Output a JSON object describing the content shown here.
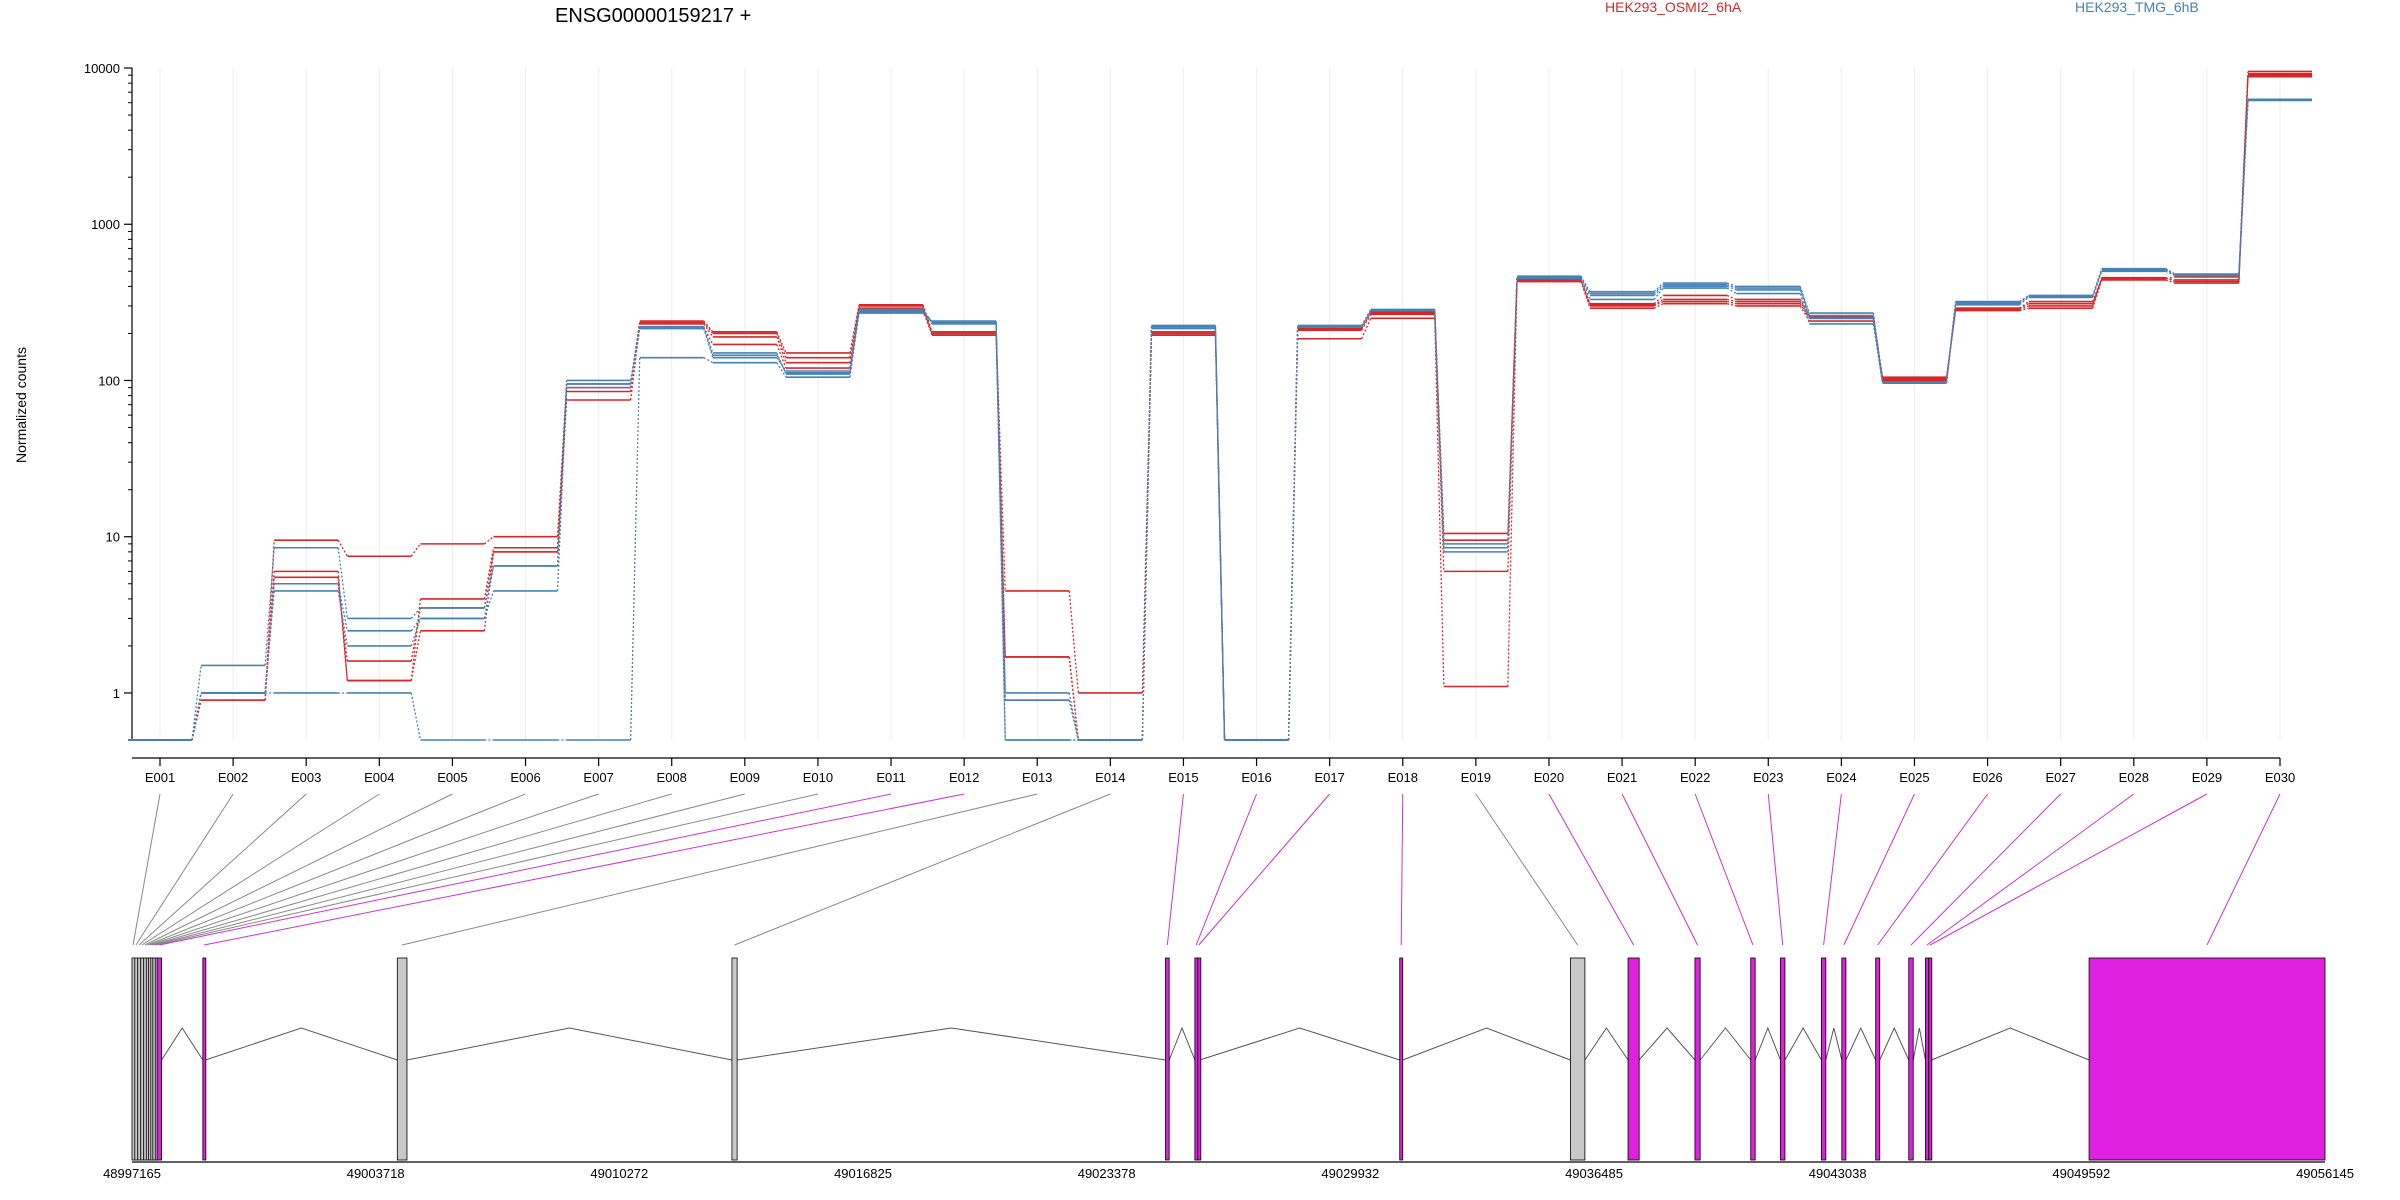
{
  "colors": {
    "group1": "#d62728",
    "group2": "#4682b4",
    "constitutive_exon": "#c8c8c8",
    "tested_exon": "#e020e0",
    "connector_gray": "#888888",
    "connector_magenta": "#cc33cc"
  },
  "chart_data": {
    "type": "line",
    "title": "ENSG00000159217 +",
    "ylabel": "Normalized counts",
    "yscale": "log",
    "ylim": [
      0.5,
      10000
    ],
    "yticks": [
      "1",
      "10",
      "100",
      "1000",
      "10000"
    ],
    "grid": true,
    "legend": [
      {
        "name": "HEK293_OSMI2_6hA",
        "color": "#d62728"
      },
      {
        "name": "HEK293_TMG_6hB",
        "color": "#4682b4"
      }
    ],
    "categories": [
      "E001",
      "E002",
      "E003",
      "E004",
      "E005",
      "E006",
      "E007",
      "E008",
      "E009",
      "E010",
      "E011",
      "E012",
      "E013",
      "E014",
      "E015",
      "E016",
      "E017",
      "E018",
      "E019",
      "E020",
      "E021",
      "E022",
      "E023",
      "E024",
      "E025",
      "E026",
      "E027",
      "E028",
      "E029",
      "E030"
    ],
    "series": [
      {
        "group": "HEK293_OSMI2_6hA",
        "values": [
          0.5,
          0.9,
          9.5,
          7.5,
          9.0,
          10.0,
          95,
          240,
          205,
          150,
          305,
          205,
          4.5,
          1.0,
          205,
          0.5,
          215,
          270,
          10.5,
          430,
          310,
          350,
          330,
          260,
          105,
          290,
          320,
          450,
          460,
          9500
        ]
      },
      {
        "group": "HEK293_OSMI2_6hA",
        "values": [
          0.5,
          1.0,
          6.0,
          1.2,
          4.0,
          8.5,
          85,
          235,
          200,
          140,
          290,
          200,
          1.7,
          0.5,
          200,
          0.5,
          215,
          275,
          6.0,
          440,
          300,
          320,
          310,
          250,
          100,
          285,
          300,
          455,
          430,
          9200
        ]
      },
      {
        "group": "HEK293_OSMI2_6hA",
        "values": [
          0.5,
          0.9,
          5.5,
          1.2,
          2.5,
          8.0,
          75,
          220,
          170,
          120,
          280,
          195,
          0.9,
          0.5,
          195,
          0.5,
          185,
          250,
          1.1,
          430,
          290,
          310,
          300,
          240,
          102,
          280,
          290,
          440,
          420,
          8800
        ]
      },
      {
        "group": "HEK293_OSMI2_6hA",
        "values": [
          0.5,
          1.0,
          5.0,
          1.6,
          3.5,
          8.0,
          90,
          230,
          190,
          130,
          300,
          195,
          1.7,
          0.5,
          195,
          0.5,
          210,
          265,
          9.5,
          440,
          305,
          330,
          320,
          255,
          103,
          290,
          310,
          450,
          440,
          9000
        ]
      },
      {
        "group": "HEK293_TMG_6hB",
        "values": [
          0.5,
          1.5,
          8.5,
          3.0,
          3.5,
          6.5,
          100,
          220,
          150,
          110,
          275,
          240,
          1.0,
          0.5,
          225,
          0.5,
          225,
          285,
          8.5,
          465,
          370,
          420,
          400,
          270,
          97,
          320,
          350,
          520,
          480,
          6300
        ]
      },
      {
        "group": "HEK293_TMG_6hB",
        "values": [
          0.5,
          1.0,
          1.0,
          1.0,
          0.5,
          0.5,
          0.5,
          140,
          130,
          105,
          270,
          230,
          0.5,
          0.5,
          220,
          0.5,
          220,
          280,
          9.0,
          450,
          330,
          390,
          360,
          230,
          96,
          305,
          340,
          500,
          470,
          6200
        ]
      },
      {
        "group": "HEK293_TMG_6hB",
        "values": [
          0.5,
          1.0,
          4.5,
          2.0,
          3.0,
          4.5,
          90,
          215,
          140,
          115,
          280,
          235,
          0.9,
          0.5,
          215,
          0.5,
          220,
          280,
          8.5,
          455,
          350,
          400,
          380,
          250,
          98,
          310,
          345,
          510,
          475,
          6250
        ]
      },
      {
        "group": "HEK293_TMG_6hB",
        "values": [
          0.5,
          1.0,
          5.0,
          2.5,
          3.0,
          6.5,
          95,
          220,
          145,
          112,
          285,
          235,
          0.5,
          0.5,
          220,
          0.5,
          222,
          282,
          8.0,
          460,
          360,
          410,
          390,
          260,
          97,
          315,
          348,
          515,
          478,
          6280
        ]
      }
    ],
    "gene_model": {
      "coordinate_ticks": [
        "48997165",
        "49003718",
        "49010272",
        "49016825",
        "49023378",
        "49029932",
        "49036485",
        "49043038",
        "49049592",
        "49056145"
      ],
      "coordinate_range": [
        48997165,
        49056145
      ],
      "exons": [
        {
          "id": "E001",
          "start": 48997165,
          "end": 48997220,
          "tested": false
        },
        {
          "id": "E002",
          "start": 48997240,
          "end": 48997300,
          "tested": false
        },
        {
          "id": "E003",
          "start": 48997320,
          "end": 48997390,
          "tested": false
        },
        {
          "id": "E004",
          "start": 48997400,
          "end": 48997460,
          "tested": false
        },
        {
          "id": "E005",
          "start": 48997480,
          "end": 48997540,
          "tested": false
        },
        {
          "id": "E006",
          "start": 48997550,
          "end": 48997600,
          "tested": false
        },
        {
          "id": "E007",
          "start": 48997610,
          "end": 48997660,
          "tested": false
        },
        {
          "id": "E008",
          "start": 48997670,
          "end": 48997720,
          "tested": false
        },
        {
          "id": "E009",
          "start": 48997725,
          "end": 48997780,
          "tested": false
        },
        {
          "id": "E010",
          "start": 48997790,
          "end": 48997830,
          "tested": false
        },
        {
          "id": "E011",
          "start": 48997840,
          "end": 48997960,
          "tested": true
        },
        {
          "id": "E012",
          "start": 48999070,
          "end": 48999140,
          "tested": true
        },
        {
          "id": "E013",
          "start": 49004300,
          "end": 49004560,
          "tested": false
        },
        {
          "id": "E014",
          "start": 49013300,
          "end": 49013440,
          "tested": false
        },
        {
          "id": "E015",
          "start": 49024960,
          "end": 49025060,
          "tested": true
        },
        {
          "id": "E016",
          "start": 49025750,
          "end": 49025820,
          "tested": true
        },
        {
          "id": "E017",
          "start": 49025830,
          "end": 49025880,
          "tested": true
        },
        {
          "id": "E018",
          "start": 49031260,
          "end": 49031340,
          "tested": true
        },
        {
          "id": "E019",
          "start": 49035850,
          "end": 49036240,
          "tested": false
        },
        {
          "id": "E020",
          "start": 49037400,
          "end": 49037700,
          "tested": true
        },
        {
          "id": "E021",
          "start": 49039200,
          "end": 49039340,
          "tested": true
        },
        {
          "id": "E022",
          "start": 49040700,
          "end": 49040820,
          "tested": true
        },
        {
          "id": "E023",
          "start": 49041500,
          "end": 49041620,
          "tested": true
        },
        {
          "id": "E024",
          "start": 49042600,
          "end": 49042720,
          "tested": true
        },
        {
          "id": "E025",
          "start": 49043150,
          "end": 49043260,
          "tested": true
        },
        {
          "id": "E026",
          "start": 49044060,
          "end": 49044170,
          "tested": true
        },
        {
          "id": "E027",
          "start": 49044950,
          "end": 49045070,
          "tested": true
        },
        {
          "id": "E028",
          "start": 49045400,
          "end": 49045480,
          "tested": true
        },
        {
          "id": "E029",
          "start": 49045490,
          "end": 49045560,
          "tested": true
        },
        {
          "id": "E030",
          "start": 49049800,
          "end": 49056145,
          "tested": true
        }
      ]
    }
  }
}
